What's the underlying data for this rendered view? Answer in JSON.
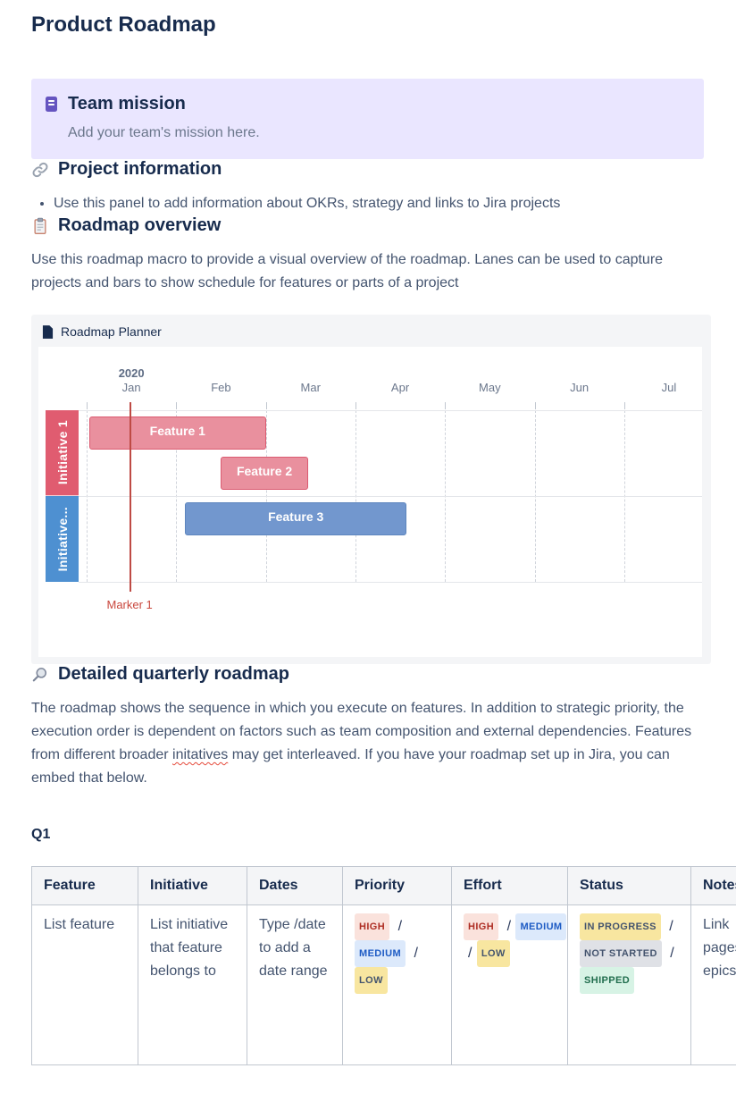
{
  "page": {
    "title": "Product Roadmap"
  },
  "mission": {
    "title": "Team mission",
    "placeholder": "Add your team's mission here.",
    "panel_bg": "#EAE6FF",
    "icon_color": "#6554C0"
  },
  "project_info": {
    "heading": "Project information",
    "bullet": "Use this panel to add information about OKRs, strategy and links to Jira projects"
  },
  "roadmap_overview": {
    "heading": "Roadmap overview",
    "description": "Use this roadmap macro to provide a visual overview of the roadmap. Lanes can be used to capture projects and bars to show schedule for features or parts of a project"
  },
  "chart_data": {
    "type": "gantt",
    "macro_label": "Roadmap Planner",
    "title": "Roadmap Planner",
    "year": "2020",
    "months": [
      "Jan",
      "Feb",
      "Mar",
      "Apr",
      "May",
      "Jun",
      "Jul"
    ],
    "x_axis_note": "months of 2020, timeline starts Jan, Jul partially cut at right edge",
    "lanes": [
      {
        "label": "Initiative 1",
        "lane_color": "#E05C70",
        "bar_fill": "#E9909E",
        "bar_border": "#DB5B71",
        "features": [
          {
            "label": "Feature 1",
            "start_month": 0.03,
            "end_month": 2.0,
            "row": 0
          },
          {
            "label": "Feature 2",
            "start_month": 1.5,
            "end_month": 2.47,
            "row": 1
          }
        ]
      },
      {
        "label": "Initiative...",
        "lane_color": "#4E90D1",
        "bar_fill": "#7297CE",
        "bar_border": "#5E86BE",
        "features": [
          {
            "label": "Feature 3",
            "start_month": 1.1,
            "end_month": 3.57,
            "row": 0
          }
        ]
      }
    ],
    "marker": {
      "label": "Marker 1",
      "month": 0.48,
      "line_color": "#BE4A44",
      "text_color": "#C9473D"
    }
  },
  "detailed": {
    "heading": "Detailed quarterly roadmap",
    "para_before": "The roadmap shows the sequence in which you execute on features. In addition to strategic priority, the execution order is dependent on factors such as team composition and external dependencies. Features from different broader ",
    "misspelled_word": "initatives",
    "para_after": " may get interleaved. If you have your roadmap set up in Jira, you can embed that below."
  },
  "q1": {
    "heading": "Q1"
  },
  "table": {
    "headers": [
      "Feature",
      "Initiative",
      "Dates",
      "Priority",
      "Effort",
      "Status",
      "Notes"
    ],
    "row": {
      "feature": "List feature",
      "initiative": "List initiative that feature belongs to",
      "dates": "Type /date to add a date range",
      "priority_lines": [
        [
          {
            "badge": "HIGH",
            "type": "red"
          },
          {
            "text": "/"
          }
        ],
        [
          {
            "badge": "MEDIUM",
            "type": "blue"
          },
          {
            "text": "/"
          }
        ],
        [
          {
            "badge": "LOW",
            "type": "yellow"
          }
        ]
      ],
      "effort_lines": [
        [
          {
            "badge": "HIGH",
            "type": "red"
          },
          {
            "text": "/"
          },
          {
            "badge": "MEDIUM",
            "type": "blue"
          }
        ],
        [
          {
            "text": "/"
          },
          {
            "badge": "LOW",
            "type": "yellow"
          }
        ]
      ],
      "status_lines": [
        [
          {
            "badge": "IN PROGRESS",
            "type": "yellow"
          },
          {
            "text": "/"
          }
        ],
        [
          {
            "badge": "NOT STARTED",
            "type": "gray"
          },
          {
            "text": "/"
          }
        ],
        [
          {
            "badge": "SHIPPED",
            "type": "green"
          }
        ]
      ],
      "notes_lines": [
        "Link",
        "pages",
        "epics"
      ]
    }
  },
  "lozenge_colors": {
    "red": {
      "bg": "#FAE2DC",
      "fg": "#AE2E24"
    },
    "blue": {
      "bg": "#DCE9FB",
      "fg": "#1D5BC4"
    },
    "yellow": {
      "bg": "#F8E6A0",
      "fg": "#44546E"
    },
    "gray": {
      "bg": "#DFE1E6",
      "fg": "#44546E"
    },
    "green": {
      "bg": "#D7F3E5",
      "fg": "#216E4E"
    }
  }
}
